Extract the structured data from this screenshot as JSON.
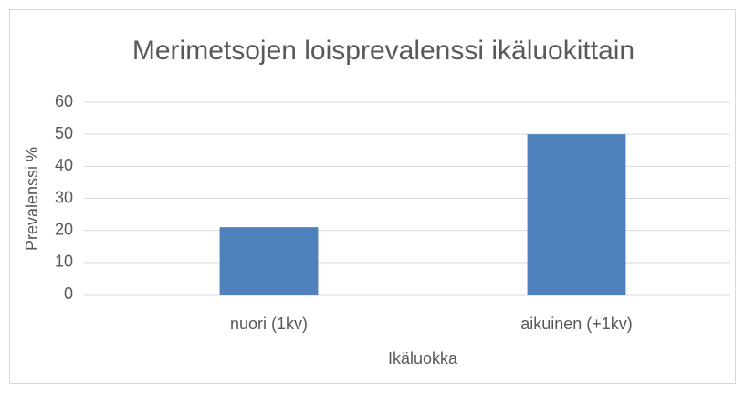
{
  "chart_data": {
    "type": "bar",
    "title": "Merimetsojen loisprevalenssi ikäluokittain",
    "x_label": "Ikäluokka",
    "y_label": "Prevalenssi %",
    "categories": [
      "nuori (1kv)",
      "aikuinen (+1kv)"
    ],
    "values": [
      21,
      50
    ],
    "color": "#4f81bd",
    "ylim": [
      0,
      60
    ],
    "yticks": [
      0,
      10,
      20,
      30,
      40,
      50,
      60
    ],
    "grid": true
  }
}
